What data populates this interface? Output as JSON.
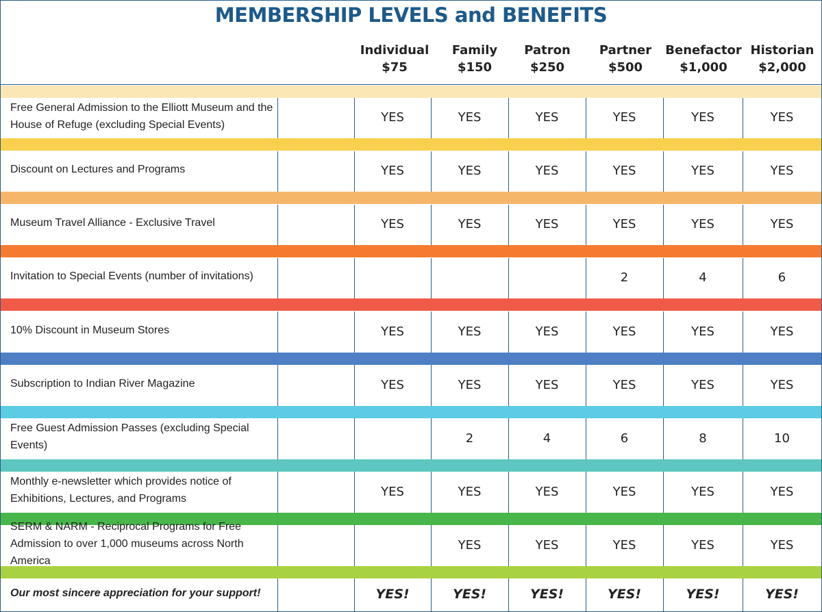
{
  "title": "MEMBERSHIP LEVELS and BENEFITS",
  "levels": [
    {
      "name": "Individual",
      "price": "$75"
    },
    {
      "name": "Family",
      "price": "$150"
    },
    {
      "name": "Patron",
      "price": "$250"
    },
    {
      "name": "Partner",
      "price": "$500"
    },
    {
      "name": "Benefactor",
      "price": "$1,000"
    },
    {
      "name": "Historian",
      "price": "$2,000"
    }
  ],
  "band_colors": [
    "#fbe7b6",
    "#f8d04d",
    "#f5b66a",
    "#f47b30",
    "#ef5b48",
    "#4e7fc4",
    "#5ccbe3",
    "#5ec6c0",
    "#48b64a",
    "#a9d243"
  ],
  "benefits": [
    {
      "label": "Free General Admission to the Elliott Museum and the House of Refuge (excluding Special Events)",
      "values": [
        "YES",
        "YES",
        "YES",
        "YES",
        "YES",
        "YES"
      ]
    },
    {
      "label": "Discount on Lectures and Programs",
      "values": [
        "YES",
        "YES",
        "YES",
        "YES",
        "YES",
        "YES"
      ]
    },
    {
      "label": "Museum Travel Alliance - Exclusive Travel",
      "values": [
        "YES",
        "YES",
        "YES",
        "YES",
        "YES",
        "YES"
      ]
    },
    {
      "label": "Invitation to Special Events (number of invitations)",
      "values": [
        "",
        "",
        "",
        "2",
        "4",
        "6"
      ]
    },
    {
      "label": "10% Discount in Museum Stores",
      "values": [
        "YES",
        "YES",
        "YES",
        "YES",
        "YES",
        "YES"
      ]
    },
    {
      "label": "Subscription to Indian River Magazine",
      "values": [
        "YES",
        "YES",
        "YES",
        "YES",
        "YES",
        "YES"
      ]
    },
    {
      "label": "Free Guest Admission Passes (excluding Special Events)",
      "values": [
        "",
        "2",
        "4",
        "6",
        "8",
        "10"
      ]
    },
    {
      "label": "Monthly e-newsletter which provides notice of Exhibitions, Lectures, and Programs",
      "values": [
        "YES",
        "YES",
        "YES",
        "YES",
        "YES",
        "YES"
      ]
    },
    {
      "label": "SERM & NARM - Reciprocal Programs for Free Admission to over 1,000 museums across North America",
      "values": [
        "",
        "YES",
        "YES",
        "YES",
        "YES",
        "YES"
      ]
    },
    {
      "label": "Our most sincere appreciation for your support!",
      "values": [
        "YES!",
        "YES!",
        "YES!",
        "YES!",
        "YES!",
        "YES!"
      ]
    }
  ]
}
